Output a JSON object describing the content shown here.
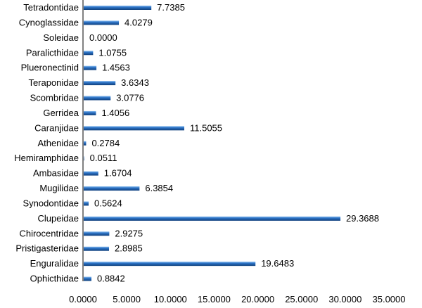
{
  "chart_data": {
    "type": "bar",
    "orientation": "horizontal",
    "title": "",
    "xlabel": "",
    "ylabel": "",
    "categories": [
      "Tetradontidae",
      "Cynoglassidae",
      "Soleidae",
      "Paralicthidae",
      "Plueronectinid",
      "Teraponidae",
      "Scombridae",
      "Gerridea",
      "Caranjidae",
      "Athenidae",
      "Hemiramphidae",
      "Ambasidae",
      "Mugilidae",
      "Synodontidae",
      "Clupeidae",
      "Chirocentridae",
      "Pristigasteridae",
      "Enguralidae",
      "Ophicthidae"
    ],
    "values": [
      7.7385,
      4.0279,
      0.0,
      1.0755,
      1.4563,
      3.6343,
      3.0776,
      1.4056,
      11.5055,
      0.2784,
      0.0511,
      1.6704,
      6.3854,
      0.5624,
      29.3688,
      2.9275,
      2.8985,
      19.6483,
      0.8842
    ],
    "value_labels": [
      "7.7385",
      "4.0279",
      "0.0000",
      "1.0755",
      "1.4563",
      "3.6343",
      "3.0776",
      "1.4056",
      "11.5055",
      "0.2784",
      "0.0511",
      "1.6704",
      "6.3854",
      "0.5624",
      "29.3688",
      "2.9275",
      "2.8985",
      "19.6483",
      "0.8842"
    ],
    "xlim": [
      0,
      35
    ],
    "xticks": [
      0,
      5,
      10,
      15,
      20,
      25,
      30,
      35
    ],
    "xtick_labels": [
      "0.0000",
      "5.0000",
      "10.0000",
      "15.0000",
      "20.0000",
      "25.0000",
      "30.0000",
      "35.0000"
    ],
    "grid": false,
    "legend": "none",
    "bar_color": "#2E75C8"
  }
}
